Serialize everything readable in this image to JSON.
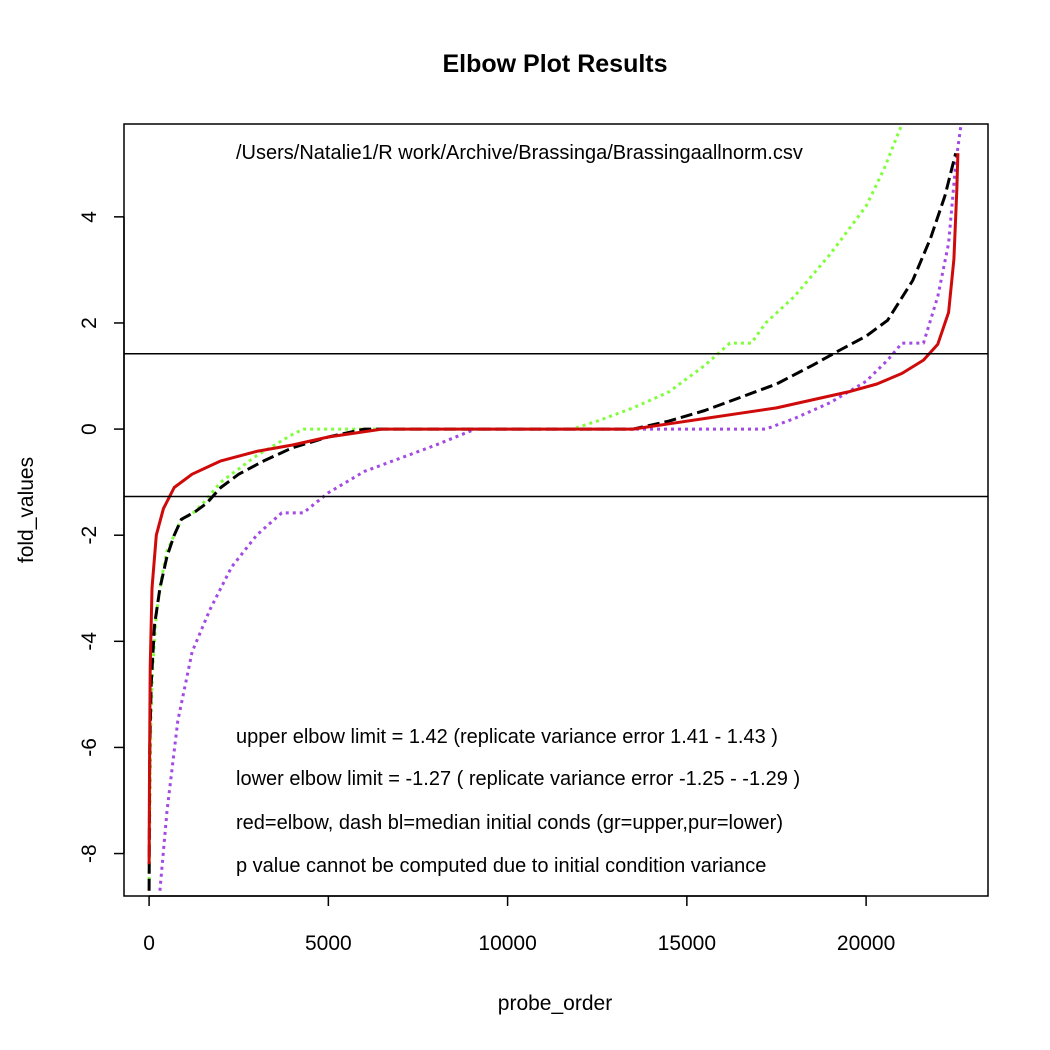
{
  "chart_data": {
    "type": "line",
    "title": "Elbow Plot Results",
    "xlabel": "probe_order",
    "ylabel": "fold_values",
    "xlim": [
      -700,
      23400
    ],
    "ylim": [
      -8.8,
      5.75
    ],
    "xticks": [
      0,
      5000,
      10000,
      15000,
      20000
    ],
    "yticks": [
      -8,
      -6,
      -4,
      -2,
      0,
      2,
      4
    ],
    "xtick_labels": [
      "0",
      "5000",
      "10000",
      "15000",
      "20000"
    ],
    "ytick_labels": [
      "-8",
      "-6",
      "-4",
      "-2",
      "0",
      "2",
      "4"
    ],
    "grid": false,
    "annotations": {
      "file_path": "/Users/Natalie1/R work/Archive/Brassinga/Brassingaallnorm.csv",
      "lines": [
        "upper elbow limit = 1.42 (replicate variance error 1.41 - 1.43 )",
        "lower elbow limit = -1.27 ( replicate variance error -1.25 - -1.29 )",
        "red=elbow, dash bl=median initial conds (gr=upper,pur=lower)",
        "p value cannot be computed due to initial condition variance"
      ]
    },
    "hlines": [
      1.42,
      -1.27
    ],
    "series": [
      {
        "color": "#7fff3a",
        "values": [
          [
            0,
            -8.5
          ],
          [
            50,
            -5.5
          ],
          [
            100,
            -4.5
          ],
          [
            200,
            -3.5
          ],
          [
            350,
            -2.8
          ],
          [
            500,
            -2.3
          ],
          [
            700,
            -2.0
          ],
          [
            900,
            -1.7
          ],
          [
            1200,
            -1.6
          ],
          [
            1500,
            -1.4
          ],
          [
            2000,
            -1.0
          ],
          [
            2500,
            -0.75
          ],
          [
            3000,
            -0.5
          ],
          [
            3500,
            -0.3
          ],
          [
            4000,
            -0.1
          ],
          [
            4300,
            0.0
          ],
          [
            6000,
            0.0
          ],
          [
            8000,
            0.0
          ],
          [
            10000,
            0.0
          ],
          [
            11800,
            0.0
          ],
          [
            12500,
            0.15
          ],
          [
            13500,
            0.4
          ],
          [
            14500,
            0.7
          ],
          [
            15500,
            1.2
          ],
          [
            16200,
            1.62
          ],
          [
            16800,
            1.62
          ],
          [
            17200,
            2.0
          ],
          [
            18000,
            2.5
          ],
          [
            19000,
            3.3
          ],
          [
            20000,
            4.2
          ],
          [
            20500,
            4.9
          ],
          [
            21000,
            5.75
          ]
        ]
      },
      {
        "color": "#a24ae3",
        "values": [
          [
            300,
            -8.7
          ],
          [
            500,
            -7.2
          ],
          [
            800,
            -5.5
          ],
          [
            1200,
            -4.2
          ],
          [
            1700,
            -3.4
          ],
          [
            2300,
            -2.6
          ],
          [
            3000,
            -2.0
          ],
          [
            3700,
            -1.58
          ],
          [
            4300,
            -1.58
          ],
          [
            5000,
            -1.2
          ],
          [
            6000,
            -0.8
          ],
          [
            7000,
            -0.55
          ],
          [
            8000,
            -0.3
          ],
          [
            9100,
            0.0
          ],
          [
            12000,
            0.0
          ],
          [
            15000,
            0.0
          ],
          [
            17200,
            0.0
          ],
          [
            18000,
            0.2
          ],
          [
            19000,
            0.5
          ],
          [
            20000,
            0.9
          ],
          [
            20600,
            1.3
          ],
          [
            21000,
            1.62
          ],
          [
            21600,
            1.62
          ],
          [
            22000,
            2.5
          ],
          [
            22300,
            3.5
          ],
          [
            22500,
            5.0
          ],
          [
            22650,
            5.75
          ]
        ]
      },
      {
        "color": "#000000",
        "values": [
          [
            0,
            -8.7
          ],
          [
            20,
            -6.0
          ],
          [
            60,
            -4.8
          ],
          [
            150,
            -3.7
          ],
          [
            300,
            -3.0
          ],
          [
            500,
            -2.4
          ],
          [
            700,
            -2.0
          ],
          [
            900,
            -1.7
          ],
          [
            1300,
            -1.55
          ],
          [
            1600,
            -1.4
          ],
          [
            2000,
            -1.1
          ],
          [
            2500,
            -0.85
          ],
          [
            3200,
            -0.6
          ],
          [
            4000,
            -0.35
          ],
          [
            5000,
            -0.15
          ],
          [
            6000,
            0.0
          ],
          [
            8000,
            0.0
          ],
          [
            10000,
            0.0
          ],
          [
            12000,
            0.0
          ],
          [
            13500,
            0.0
          ],
          [
            14500,
            0.15
          ],
          [
            15500,
            0.35
          ],
          [
            16500,
            0.6
          ],
          [
            17500,
            0.85
          ],
          [
            18500,
            1.2
          ],
          [
            19300,
            1.5
          ],
          [
            20000,
            1.75
          ],
          [
            20600,
            2.05
          ],
          [
            21300,
            2.8
          ],
          [
            21800,
            3.6
          ],
          [
            22200,
            4.4
          ],
          [
            22500,
            5.2
          ]
        ]
      },
      {
        "color": "#cf0a0a",
        "values": [
          [
            0,
            -8.2
          ],
          [
            10,
            -6.5
          ],
          [
            30,
            -4.5
          ],
          [
            80,
            -3.0
          ],
          [
            200,
            -2.0
          ],
          [
            400,
            -1.5
          ],
          [
            700,
            -1.1
          ],
          [
            1200,
            -0.85
          ],
          [
            2000,
            -0.6
          ],
          [
            3000,
            -0.42
          ],
          [
            4000,
            -0.3
          ],
          [
            5000,
            -0.15
          ],
          [
            6500,
            0.0
          ],
          [
            9000,
            0.0
          ],
          [
            11000,
            0.0
          ],
          [
            13500,
            0.0
          ],
          [
            14500,
            0.1
          ],
          [
            15500,
            0.2
          ],
          [
            16500,
            0.3
          ],
          [
            17500,
            0.4
          ],
          [
            18500,
            0.55
          ],
          [
            19500,
            0.7
          ],
          [
            20300,
            0.85
          ],
          [
            21000,
            1.05
          ],
          [
            21600,
            1.3
          ],
          [
            22000,
            1.6
          ],
          [
            22300,
            2.2
          ],
          [
            22450,
            3.2
          ],
          [
            22530,
            4.5
          ],
          [
            22560,
            5.2
          ]
        ]
      }
    ]
  }
}
